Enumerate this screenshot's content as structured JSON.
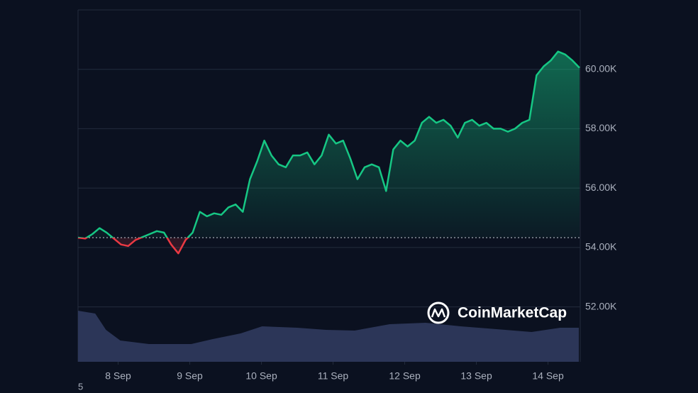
{
  "chart_data": {
    "type": "line",
    "x": [
      7.44,
      7.54,
      7.64,
      7.74,
      7.84,
      7.94,
      8.04,
      8.14,
      8.24,
      8.34,
      8.44,
      8.54,
      8.64,
      8.74,
      8.84,
      8.94,
      9.04,
      9.14,
      9.24,
      9.34,
      9.44,
      9.54,
      9.64,
      9.74,
      9.84,
      9.94,
      10.04,
      10.14,
      10.24,
      10.34,
      10.44,
      10.54,
      10.64,
      10.74,
      10.84,
      10.94,
      11.04,
      11.14,
      11.24,
      11.34,
      11.44,
      11.54,
      11.64,
      11.74,
      11.84,
      11.94,
      12.04,
      12.14,
      12.24,
      12.34,
      12.44,
      12.54,
      12.64,
      12.74,
      12.84,
      12.94,
      13.04,
      13.14,
      13.24,
      13.34,
      13.44,
      13.54,
      13.64,
      13.74,
      13.84,
      13.94,
      14.04,
      14.14,
      14.24,
      14.34,
      14.44
    ],
    "values": [
      54330,
      54300,
      54450,
      54650,
      54500,
      54300,
      54100,
      54050,
      54250,
      54350,
      54450,
      54550,
      54500,
      54100,
      53800,
      54250,
      54500,
      55200,
      55050,
      55150,
      55100,
      55350,
      55450,
      55200,
      56300,
      56900,
      57600,
      57100,
      56800,
      56700,
      57100,
      57100,
      57200,
      56800,
      57100,
      57800,
      57500,
      57600,
      57000,
      56300,
      56700,
      56800,
      56700,
      55900,
      57300,
      57600,
      57400,
      57600,
      58200,
      58400,
      58200,
      58300,
      58100,
      57700,
      58200,
      58300,
      58100,
      58200,
      58000,
      58000,
      57900,
      58000,
      58200,
      58300,
      59800,
      60100,
      60300,
      60600,
      60500,
      60300,
      60050
    ],
    "baseline": 54330,
    "up_color": "#16c784",
    "down_color": "#ea3943",
    "xlim": [
      7.44,
      14.45
    ],
    "xticks": [
      {
        "value": 8,
        "label": "8 Sep"
      },
      {
        "value": 9,
        "label": "9 Sep"
      },
      {
        "value": 10,
        "label": "10 Sep"
      },
      {
        "value": 11,
        "label": "11 Sep"
      },
      {
        "value": 12,
        "label": "12 Sep"
      },
      {
        "value": 13,
        "label": "13 Sep"
      },
      {
        "value": 14,
        "label": "14 Sep"
      }
    ],
    "ylim": [
      50150,
      62000
    ],
    "yticks": [
      {
        "value": 52000,
        "label": "52.00K"
      },
      {
        "value": 54000,
        "label": "54.00K"
      },
      {
        "value": 56000,
        "label": "56.00K"
      },
      {
        "value": 58000,
        "label": "58.00K"
      },
      {
        "value": 60000,
        "label": "60.00K"
      }
    ],
    "grid": true,
    "volume": {
      "color": "#2c3658",
      "x": [
        7.44,
        7.68,
        7.83,
        8.03,
        8.43,
        9.02,
        9.32,
        9.71,
        10.01,
        10.5,
        10.9,
        11.3,
        11.79,
        12.29,
        12.78,
        13.28,
        13.77,
        14.17,
        14.43
      ],
      "values": [
        720,
        680,
        450,
        300,
        250,
        250,
        320,
        400,
        500,
        480,
        450,
        440,
        530,
        550,
        500,
        460,
        420,
        480,
        480
      ],
      "ylim": [
        0,
        1000
      ]
    },
    "watermark": "CoinMarketCap",
    "footnote": "5"
  }
}
